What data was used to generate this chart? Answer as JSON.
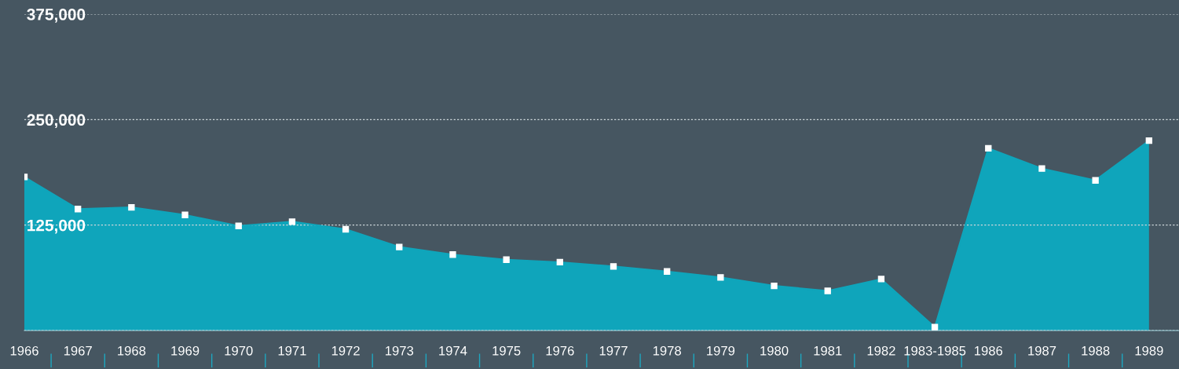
{
  "chart_data": {
    "type": "area",
    "categories": [
      "1966",
      "1967",
      "1968",
      "1969",
      "1970",
      "1971",
      "1972",
      "1973",
      "1974",
      "1975",
      "1976",
      "1977",
      "1978",
      "1979",
      "1980",
      "1981",
      "1982",
      "1983-1985",
      "1986",
      "1987",
      "1988",
      "1989"
    ],
    "series": [
      {
        "color": "#0fa5bb",
        "values": [
          182000,
          144000,
          146000,
          137000,
          124000,
          129000,
          120000,
          99000,
          90000,
          84000,
          81000,
          76000,
          70000,
          63000,
          53000,
          47000,
          61000,
          4000,
          216000,
          192000,
          178000,
          225000
        ]
      }
    ],
    "ylim": [
      0,
      375000
    ],
    "yticks": [
      {
        "value": 0,
        "label": null
      },
      {
        "value": 125000,
        "label": "125,000"
      },
      {
        "value": 250000,
        "label": "250,000"
      },
      {
        "value": 375000,
        "label": "375,000"
      }
    ],
    "grid": "y",
    "marker": "square",
    "legend": false
  }
}
